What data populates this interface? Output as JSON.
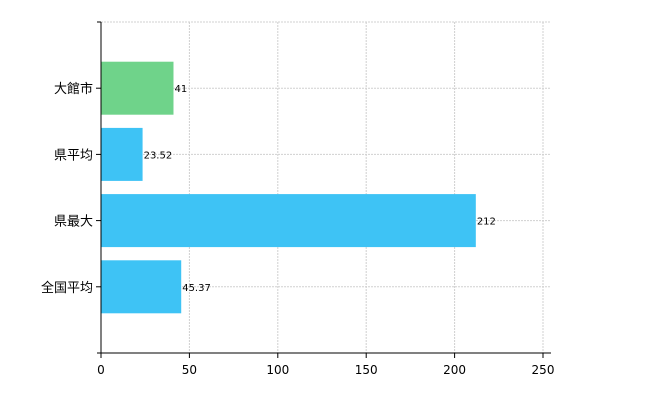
{
  "chart_data": {
    "type": "bar",
    "orientation": "horizontal",
    "categories": [
      "大館市",
      "県平均",
      "県最大",
      "全国平均"
    ],
    "values": [
      41,
      23.52,
      212,
      45.37
    ],
    "value_labels": [
      "41",
      "23.52",
      "212",
      "45.37"
    ],
    "colors": [
      "#6fd38a",
      "#3ec3f5",
      "#3ec3f5",
      "#3ec3f5"
    ],
    "title": "",
    "xlabel": "",
    "ylabel": "",
    "xlim": [
      0,
      250
    ],
    "xticks": [
      0,
      50,
      100,
      150,
      200,
      250
    ],
    "grid": true,
    "legend": "none"
  }
}
